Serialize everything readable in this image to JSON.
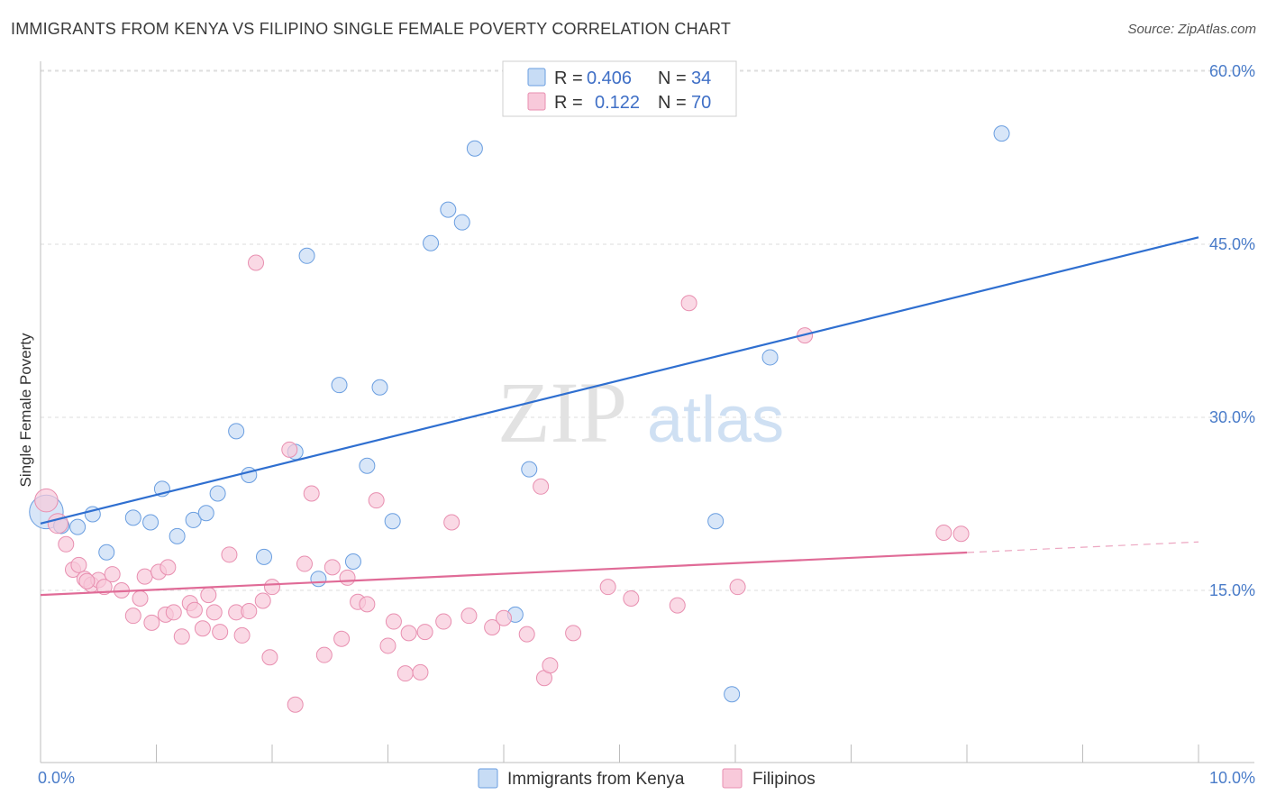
{
  "title": "IMMIGRANTS FROM KENYA VS FILIPINO SINGLE FEMALE POVERTY CORRELATION CHART",
  "source": "Source: ZipAtlas.com",
  "watermark": {
    "zip": "ZIP",
    "atlas": "atlas"
  },
  "chart_data": {
    "type": "scatter",
    "ylabel": "Single Female Poverty",
    "xlabel": "",
    "xlim": [
      0,
      10
    ],
    "ylim": [
      0,
      62
    ],
    "x_tick_labels": [
      {
        "value": 0,
        "label": "0.0%"
      },
      {
        "value": 10,
        "label": "10.0%"
      }
    ],
    "y_tick_labels": [
      {
        "value": 15,
        "label": "15.0%"
      },
      {
        "value": 30,
        "label": "30.0%"
      },
      {
        "value": 45,
        "label": "45.0%"
      },
      {
        "value": 60,
        "label": "60.0%"
      }
    ],
    "x_minor_ticks": [
      1,
      2,
      3,
      4,
      5,
      6,
      7,
      8,
      9,
      10
    ],
    "series": [
      {
        "name": "Immigrants from Kenya",
        "color": "#6a9ee0",
        "fill": "#c7dcf5",
        "R": "0.406",
        "N": "34",
        "trend": {
          "x0": 0,
          "y0": 20.8,
          "x1": 10.0,
          "y1": 45.6,
          "dashed_from": null
        },
        "points": [
          [
            0.05,
            21.8,
            2.2
          ],
          [
            0.18,
            20.6,
            1
          ],
          [
            0.32,
            20.5,
            1
          ],
          [
            0.45,
            21.6,
            1
          ],
          [
            0.57,
            18.3,
            1
          ],
          [
            0.8,
            21.3,
            1
          ],
          [
            0.95,
            20.9,
            1
          ],
          [
            1.05,
            23.8,
            1
          ],
          [
            1.18,
            19.7,
            1
          ],
          [
            1.32,
            21.1,
            1
          ],
          [
            1.43,
            21.7,
            1
          ],
          [
            1.53,
            23.4,
            1
          ],
          [
            1.69,
            28.8,
            1
          ],
          [
            1.8,
            25.0,
            1
          ],
          [
            1.93,
            17.9,
            1
          ],
          [
            2.2,
            27.0,
            1
          ],
          [
            2.3,
            44.0,
            1
          ],
          [
            2.4,
            16.0,
            1
          ],
          [
            2.58,
            32.8,
            1
          ],
          [
            2.7,
            17.5,
            1
          ],
          [
            2.82,
            25.8,
            1
          ],
          [
            2.93,
            32.6,
            1
          ],
          [
            3.04,
            21.0,
            1
          ],
          [
            3.37,
            45.1,
            1
          ],
          [
            3.52,
            48.0,
            1
          ],
          [
            3.64,
            46.9,
            1
          ],
          [
            3.75,
            53.3,
            1
          ],
          [
            4.1,
            12.9,
            1
          ],
          [
            4.22,
            25.5,
            1
          ],
          [
            5.83,
            21.0,
            1
          ],
          [
            5.97,
            6.0,
            1
          ],
          [
            6.3,
            35.2,
            1
          ],
          [
            8.3,
            54.6,
            1
          ],
          [
            0.18,
            20.6,
            1
          ]
        ]
      },
      {
        "name": "Filipinos",
        "color": "#e88fb0",
        "fill": "#f8c9da",
        "R": "0.122",
        "N": "70",
        "trend": {
          "x0": 0,
          "y0": 14.6,
          "x1": 10.0,
          "y1": 19.2,
          "dashed_from": 8.0
        },
        "points": [
          [
            0.05,
            22.8,
            1.5
          ],
          [
            0.15,
            20.8,
            1.3
          ],
          [
            0.22,
            19.0,
            1
          ],
          [
            0.28,
            16.8,
            1
          ],
          [
            0.33,
            17.2,
            1
          ],
          [
            0.38,
            16.0,
            1
          ],
          [
            0.44,
            15.5,
            1
          ],
          [
            0.5,
            15.9,
            1
          ],
          [
            0.55,
            15.3,
            1
          ],
          [
            0.62,
            16.4,
            1
          ],
          [
            0.7,
            15.0,
            1
          ],
          [
            0.8,
            12.8,
            1
          ],
          [
            0.86,
            14.3,
            1
          ],
          [
            0.9,
            16.2,
            1
          ],
          [
            0.96,
            12.2,
            1
          ],
          [
            1.02,
            16.6,
            1
          ],
          [
            1.08,
            12.9,
            1
          ],
          [
            1.15,
            13.1,
            1
          ],
          [
            1.22,
            11.0,
            1
          ],
          [
            1.29,
            13.9,
            1
          ],
          [
            1.33,
            13.3,
            1
          ],
          [
            1.4,
            11.7,
            1
          ],
          [
            1.45,
            14.6,
            1
          ],
          [
            1.5,
            13.1,
            1
          ],
          [
            1.55,
            11.4,
            1
          ],
          [
            1.63,
            18.1,
            1
          ],
          [
            1.69,
            13.1,
            1
          ],
          [
            1.74,
            11.1,
            1
          ],
          [
            1.8,
            13.2,
            1
          ],
          [
            1.86,
            43.4,
            1
          ],
          [
            1.92,
            14.1,
            1
          ],
          [
            1.98,
            9.2,
            1
          ],
          [
            2.0,
            15.3,
            1
          ],
          [
            2.15,
            27.2,
            1
          ],
          [
            2.2,
            5.1,
            1
          ],
          [
            2.28,
            17.3,
            1
          ],
          [
            2.34,
            23.4,
            1
          ],
          [
            2.45,
            9.4,
            1
          ],
          [
            2.52,
            17.0,
            1
          ],
          [
            2.6,
            10.8,
            1
          ],
          [
            2.65,
            16.1,
            1
          ],
          [
            2.74,
            14.0,
            1
          ],
          [
            2.82,
            13.8,
            1
          ],
          [
            2.9,
            22.8,
            1
          ],
          [
            3.0,
            10.2,
            1
          ],
          [
            3.05,
            12.3,
            1
          ],
          [
            3.15,
            7.8,
            1
          ],
          [
            3.18,
            11.3,
            1
          ],
          [
            3.28,
            7.9,
            1
          ],
          [
            3.32,
            11.4,
            1
          ],
          [
            3.48,
            12.3,
            1
          ],
          [
            3.55,
            20.9,
            1
          ],
          [
            3.7,
            12.8,
            1
          ],
          [
            3.9,
            11.8,
            1
          ],
          [
            4.0,
            12.6,
            1
          ],
          [
            4.2,
            11.2,
            1
          ],
          [
            4.32,
            24.0,
            1
          ],
          [
            4.35,
            7.4,
            1
          ],
          [
            4.4,
            8.5,
            1
          ],
          [
            4.6,
            11.3,
            1
          ],
          [
            4.9,
            15.3,
            1
          ],
          [
            5.1,
            14.3,
            1
          ],
          [
            5.6,
            39.9,
            1
          ],
          [
            5.5,
            13.7,
            1
          ],
          [
            6.02,
            15.3,
            1
          ],
          [
            6.6,
            37.1,
            1
          ],
          [
            7.8,
            20.0,
            1
          ],
          [
            7.95,
            19.9,
            1
          ],
          [
            0.4,
            15.8,
            1
          ],
          [
            1.1,
            17.0,
            1
          ]
        ]
      }
    ],
    "legend_position": "top-center",
    "grid": true
  },
  "legend": {
    "r_label": "R =",
    "n_label": "N ="
  }
}
